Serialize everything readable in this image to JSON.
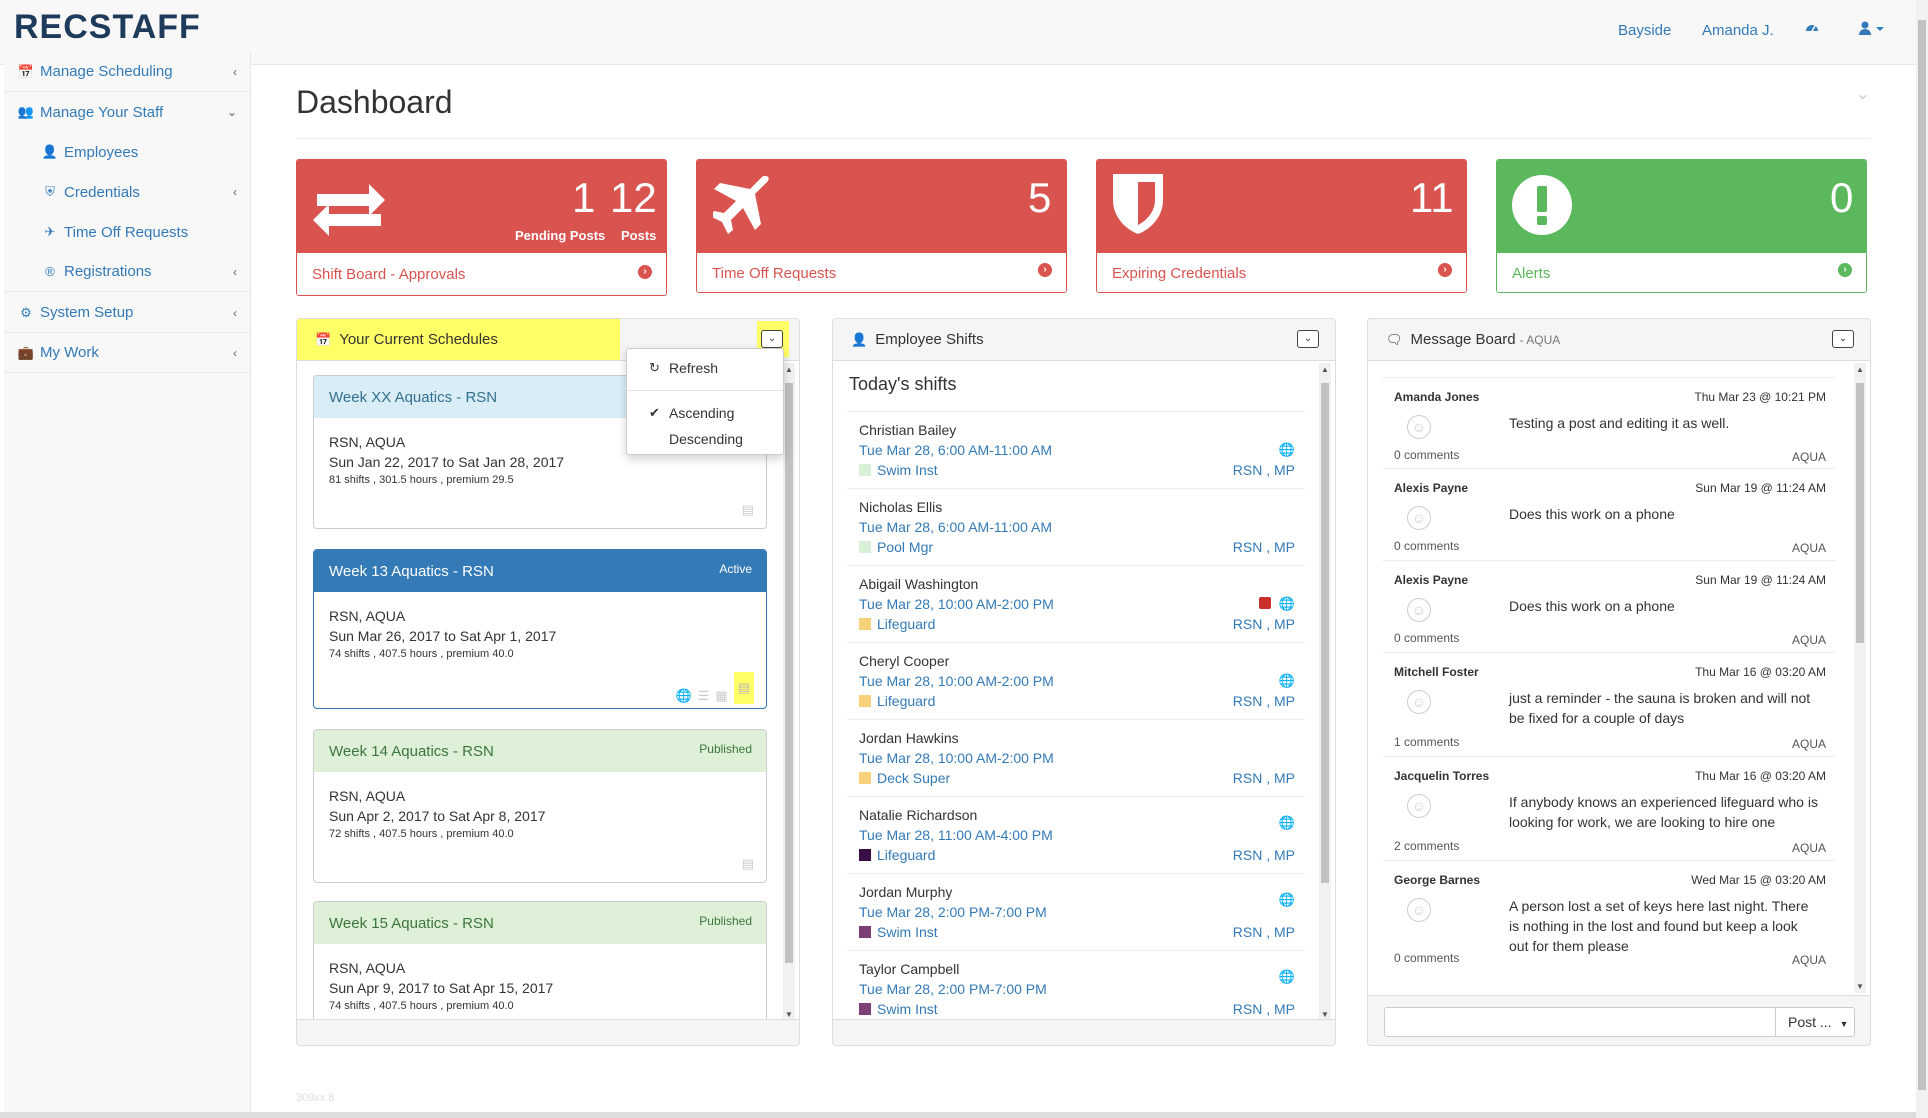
{
  "brand": "RECSTAFF",
  "topnav": {
    "location": "Bayside",
    "user": "Amanda J.",
    "dashboard_icon": "tachometer-icon",
    "user_menu_icon": "user-icon"
  },
  "sidebar": {
    "items": [
      {
        "label": "Manage Scheduling",
        "icon": "calendar-icon"
      },
      {
        "label": "Manage Your Staff",
        "icon": "users-icon"
      },
      {
        "label": "Employees",
        "icon": "user-icon"
      },
      {
        "label": "Credentials",
        "icon": "shield-icon"
      },
      {
        "label": "Time Off Requests",
        "icon": "plane-icon"
      },
      {
        "label": "Registrations",
        "icon": "registered-icon"
      },
      {
        "label": "System Setup",
        "icon": "cogs-icon"
      },
      {
        "label": "My Work",
        "icon": "briefcase-icon"
      }
    ]
  },
  "page": {
    "title": "Dashboard"
  },
  "cards": [
    {
      "title": "Shift Board - Approvals",
      "value1": "1",
      "label1": "Pending Posts",
      "value2": "12",
      "label2": "Posts",
      "icon": "exchange-icon",
      "color": "#d9534f"
    },
    {
      "title": "Time Off Requests",
      "value": "5",
      "icon": "plane-icon",
      "color": "#d9534f"
    },
    {
      "title": "Expiring Credentials",
      "value": "11",
      "icon": "shield-icon",
      "color": "#d9534f"
    },
    {
      "title": "Alerts",
      "value": "0",
      "icon": "exclamation-circle-icon",
      "color": "#5cb85c"
    }
  ],
  "schedules_panel": {
    "title": "Your Current Schedules",
    "dropdown": {
      "refresh": "Refresh",
      "ascending": "Ascending",
      "descending": "Descending",
      "selected": "Ascending"
    },
    "schedules": [
      {
        "name": "Week XX Aquatics - RSN",
        "status": "",
        "loc": "RSN, AQUA",
        "dates": "Sun Jan 22, 2017 to Sat Jan 28, 2017",
        "meta": "81 shifts , 301.5 hours , premium 29.5"
      },
      {
        "name": "Week 13 Aquatics - RSN",
        "status": "Active",
        "loc": "RSN, AQUA",
        "dates": "Sun Mar 26, 2017 to Sat Apr 1, 2017",
        "meta": "74 shifts , 407.5 hours , premium 40.0"
      },
      {
        "name": "Week 14 Aquatics - RSN",
        "status": "Published",
        "loc": "RSN, AQUA",
        "dates": "Sun Apr 2, 2017 to Sat Apr 8, 2017",
        "meta": "72 shifts , 407.5 hours , premium 40.0"
      },
      {
        "name": "Week 15 Aquatics - RSN",
        "status": "Published",
        "loc": "RSN, AQUA",
        "dates": "Sun Apr 9, 2017 to Sat Apr 15, 2017",
        "meta": "74 shifts , 407.5 hours , premium 40.0"
      }
    ]
  },
  "shifts_panel": {
    "title": "Employee Shifts",
    "subtitle": "Today's shifts",
    "shifts": [
      {
        "name": "Christian Bailey",
        "time": "Tue Mar 28, 6:00 AM-11:00 AM",
        "role": "Swim Inst",
        "loc": "RSN , MP",
        "role_color": "#d8f0d8",
        "flag": false
      },
      {
        "name": "Nicholas Ellis",
        "time": "Tue Mar 28, 6:00 AM-11:00 AM",
        "role": "Pool Mgr",
        "loc": "RSN , MP",
        "role_color": "#d8f0d8",
        "flag": false
      },
      {
        "name": "Abigail Washington",
        "time": "Tue Mar 28, 10:00 AM-2:00 PM",
        "role": "Lifeguard",
        "loc": "RSN , MP",
        "role_color": "#f7d27a",
        "flag": true
      },
      {
        "name": "Cheryl Cooper",
        "time": "Tue Mar 28, 10:00 AM-2:00 PM",
        "role": "Lifeguard",
        "loc": "RSN , MP",
        "role_color": "#f7d27a",
        "flag": false
      },
      {
        "name": "Jordan Hawkins",
        "time": "Tue Mar 28, 10:00 AM-2:00 PM",
        "role": "Deck Super",
        "loc": "RSN , MP",
        "role_color": "#f7d27a",
        "flag": false
      },
      {
        "name": "Natalie Richardson",
        "time": "Tue Mar 28, 11:00 AM-4:00 PM",
        "role": "Lifeguard",
        "loc": "RSN , MP",
        "role_color": "#3b0d47",
        "flag": false
      },
      {
        "name": "Jordan Murphy",
        "time": "Tue Mar 28, 2:00 PM-7:00 PM",
        "role": "Swim Inst",
        "loc": "RSN , MP",
        "role_color": "#7b3f75",
        "flag": false
      },
      {
        "name": "Taylor Campbell",
        "time": "Tue Mar 28, 2:00 PM-7:00 PM",
        "role": "Swim Inst",
        "loc": "RSN , MP",
        "role_color": "#7b3f75",
        "flag": false
      }
    ]
  },
  "messages_panel": {
    "title": "Message Board",
    "subtitle": "- AQUA",
    "post_button": "Post ...",
    "messages": [
      {
        "author": "Amanda Jones",
        "date": "Thu Mar 23 @ 10:21 PM",
        "text": "Testing a post and editing it as well.",
        "comments": "0 comments",
        "tag": "AQUA"
      },
      {
        "author": "Alexis Payne",
        "date": "Sun Mar 19 @ 11:24 AM",
        "text": "Does this work on a phone",
        "comments": "0 comments",
        "tag": "AQUA"
      },
      {
        "author": "Alexis Payne",
        "date": "Sun Mar 19 @ 11:24 AM",
        "text": "Does this work on a phone",
        "comments": "0 comments",
        "tag": "AQUA"
      },
      {
        "author": "Mitchell Foster",
        "date": "Thu Mar 16 @ 03:20 AM",
        "text": "just a reminder - the sauna is broken and will not be fixed for a couple of days",
        "comments": "1 comments",
        "tag": "AQUA"
      },
      {
        "author": "Jacquelin Torres",
        "date": "Thu Mar 16 @ 03:20 AM",
        "text": "If anybody knows an experienced lifeguard who is looking for work, we are looking to hire one",
        "comments": "2 comments",
        "tag": "AQUA"
      },
      {
        "author": "George Barnes",
        "date": "Wed Mar 15 @ 03:20 AM",
        "text": "A person lost a set of keys here last night. There is nothing in the lost and found but keep a look out for them please",
        "comments": "0 comments",
        "tag": "AQUA"
      }
    ]
  },
  "footer": {
    "version": "309xx 8"
  },
  "colors": {
    "danger": "#d9534f",
    "success": "#5cb85c",
    "primary": "#337ab7",
    "highlight": "#ffff66"
  }
}
